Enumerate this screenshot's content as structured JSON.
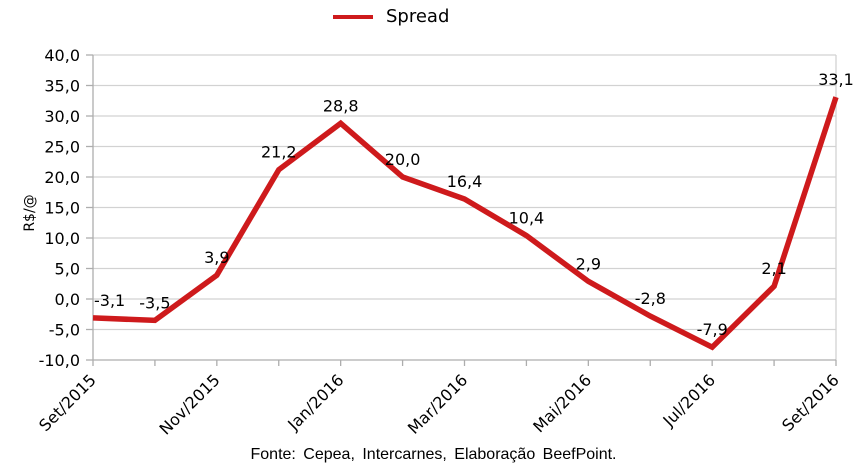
{
  "legend": {
    "label": "Spread"
  },
  "chart_data": {
    "type": "line",
    "title": "",
    "xlabel": "",
    "ylabel": "R$/@",
    "ylim": [
      -10,
      40
    ],
    "y_tick_values": [
      40,
      35,
      30,
      25,
      20,
      15,
      10,
      5,
      0,
      -5,
      -10
    ],
    "y_tick_labels": [
      "40,0",
      "35,0",
      "30,0",
      "25,0",
      "20,0",
      "15,0",
      "10,0",
      "5,0",
      "0,0",
      "-5,0",
      "-10,0"
    ],
    "x_tick_labels": [
      "Set/2015",
      "Nov/2015",
      "Jan/2016",
      "Mar/2016",
      "Mai/2016",
      "Jul/2016",
      "Set/2016"
    ],
    "x_tick_indices": [
      0,
      2,
      4,
      6,
      8,
      10,
      12
    ],
    "grid": "horizontal",
    "legend_position": "top-center",
    "series": [
      {
        "name": "Spread",
        "color": "#CE1A1C",
        "values": [
          -3.1,
          -3.5,
          3.9,
          21.2,
          28.8,
          20.0,
          16.4,
          10.4,
          2.9,
          -2.8,
          -7.9,
          2.1,
          33.1
        ],
        "point_labels": [
          "-3,1",
          "-3,5",
          "3,9",
          "21,2",
          "28,8",
          "20,0",
          "16,4",
          "10,4",
          "2,9",
          "-2,8",
          "-7,9",
          "2,1",
          "33,1"
        ]
      }
    ]
  },
  "colors": {
    "line": "#CE1A1C",
    "gridline": "#D2D2D2",
    "axis": "#ADADAD",
    "text": "#000000",
    "background": "#FFFFFF"
  },
  "footer": {
    "source_text": "Fonte: Cepea, Intercarnes, Elaboração BeefPoint."
  }
}
